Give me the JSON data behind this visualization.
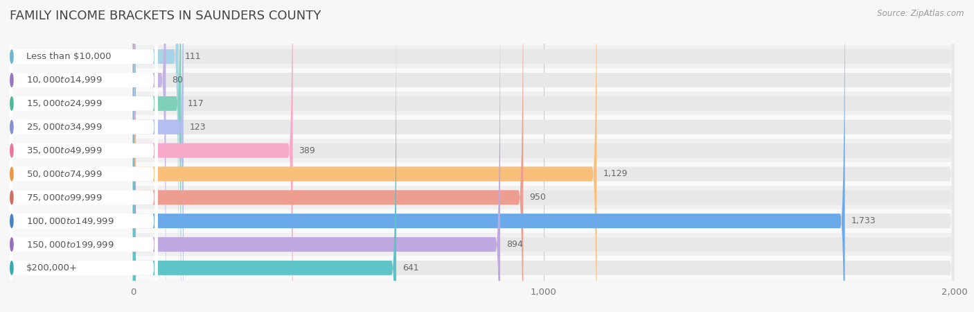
{
  "title": "Family Income Brackets in Saunders County",
  "source": "Source: ZipAtlas.com",
  "categories": [
    "Less than $10,000",
    "$10,000 to $14,999",
    "$15,000 to $24,999",
    "$25,000 to $34,999",
    "$35,000 to $49,999",
    "$50,000 to $74,999",
    "$75,000 to $99,999",
    "$100,000 to $149,999",
    "$150,000 to $199,999",
    "$200,000+"
  ],
  "values": [
    111,
    80,
    117,
    123,
    389,
    1129,
    950,
    1733,
    894,
    641
  ],
  "bar_colors": [
    "#a8d4e8",
    "#c4b4e4",
    "#7ed0b8",
    "#b4bef0",
    "#f8a8c8",
    "#f8c07a",
    "#ee9e90",
    "#6aaae8",
    "#c0a8e0",
    "#5ec4c8"
  ],
  "dot_colors": [
    "#70b4d4",
    "#9878c0",
    "#4eb898",
    "#8890d4",
    "#e87898",
    "#e89848",
    "#d07060",
    "#4882c8",
    "#9870c0",
    "#38aab0"
  ],
  "background_color": "#f7f7f7",
  "bar_bg_color": "#e8e8e8",
  "row_bg_even": "#f0f0f0",
  "row_bg_odd": "#fafafa",
  "xlim": [
    0,
    2000
  ],
  "xticks": [
    0,
    1000,
    2000
  ],
  "title_fontsize": 13,
  "label_fontsize": 9.5,
  "value_fontsize": 9.0
}
